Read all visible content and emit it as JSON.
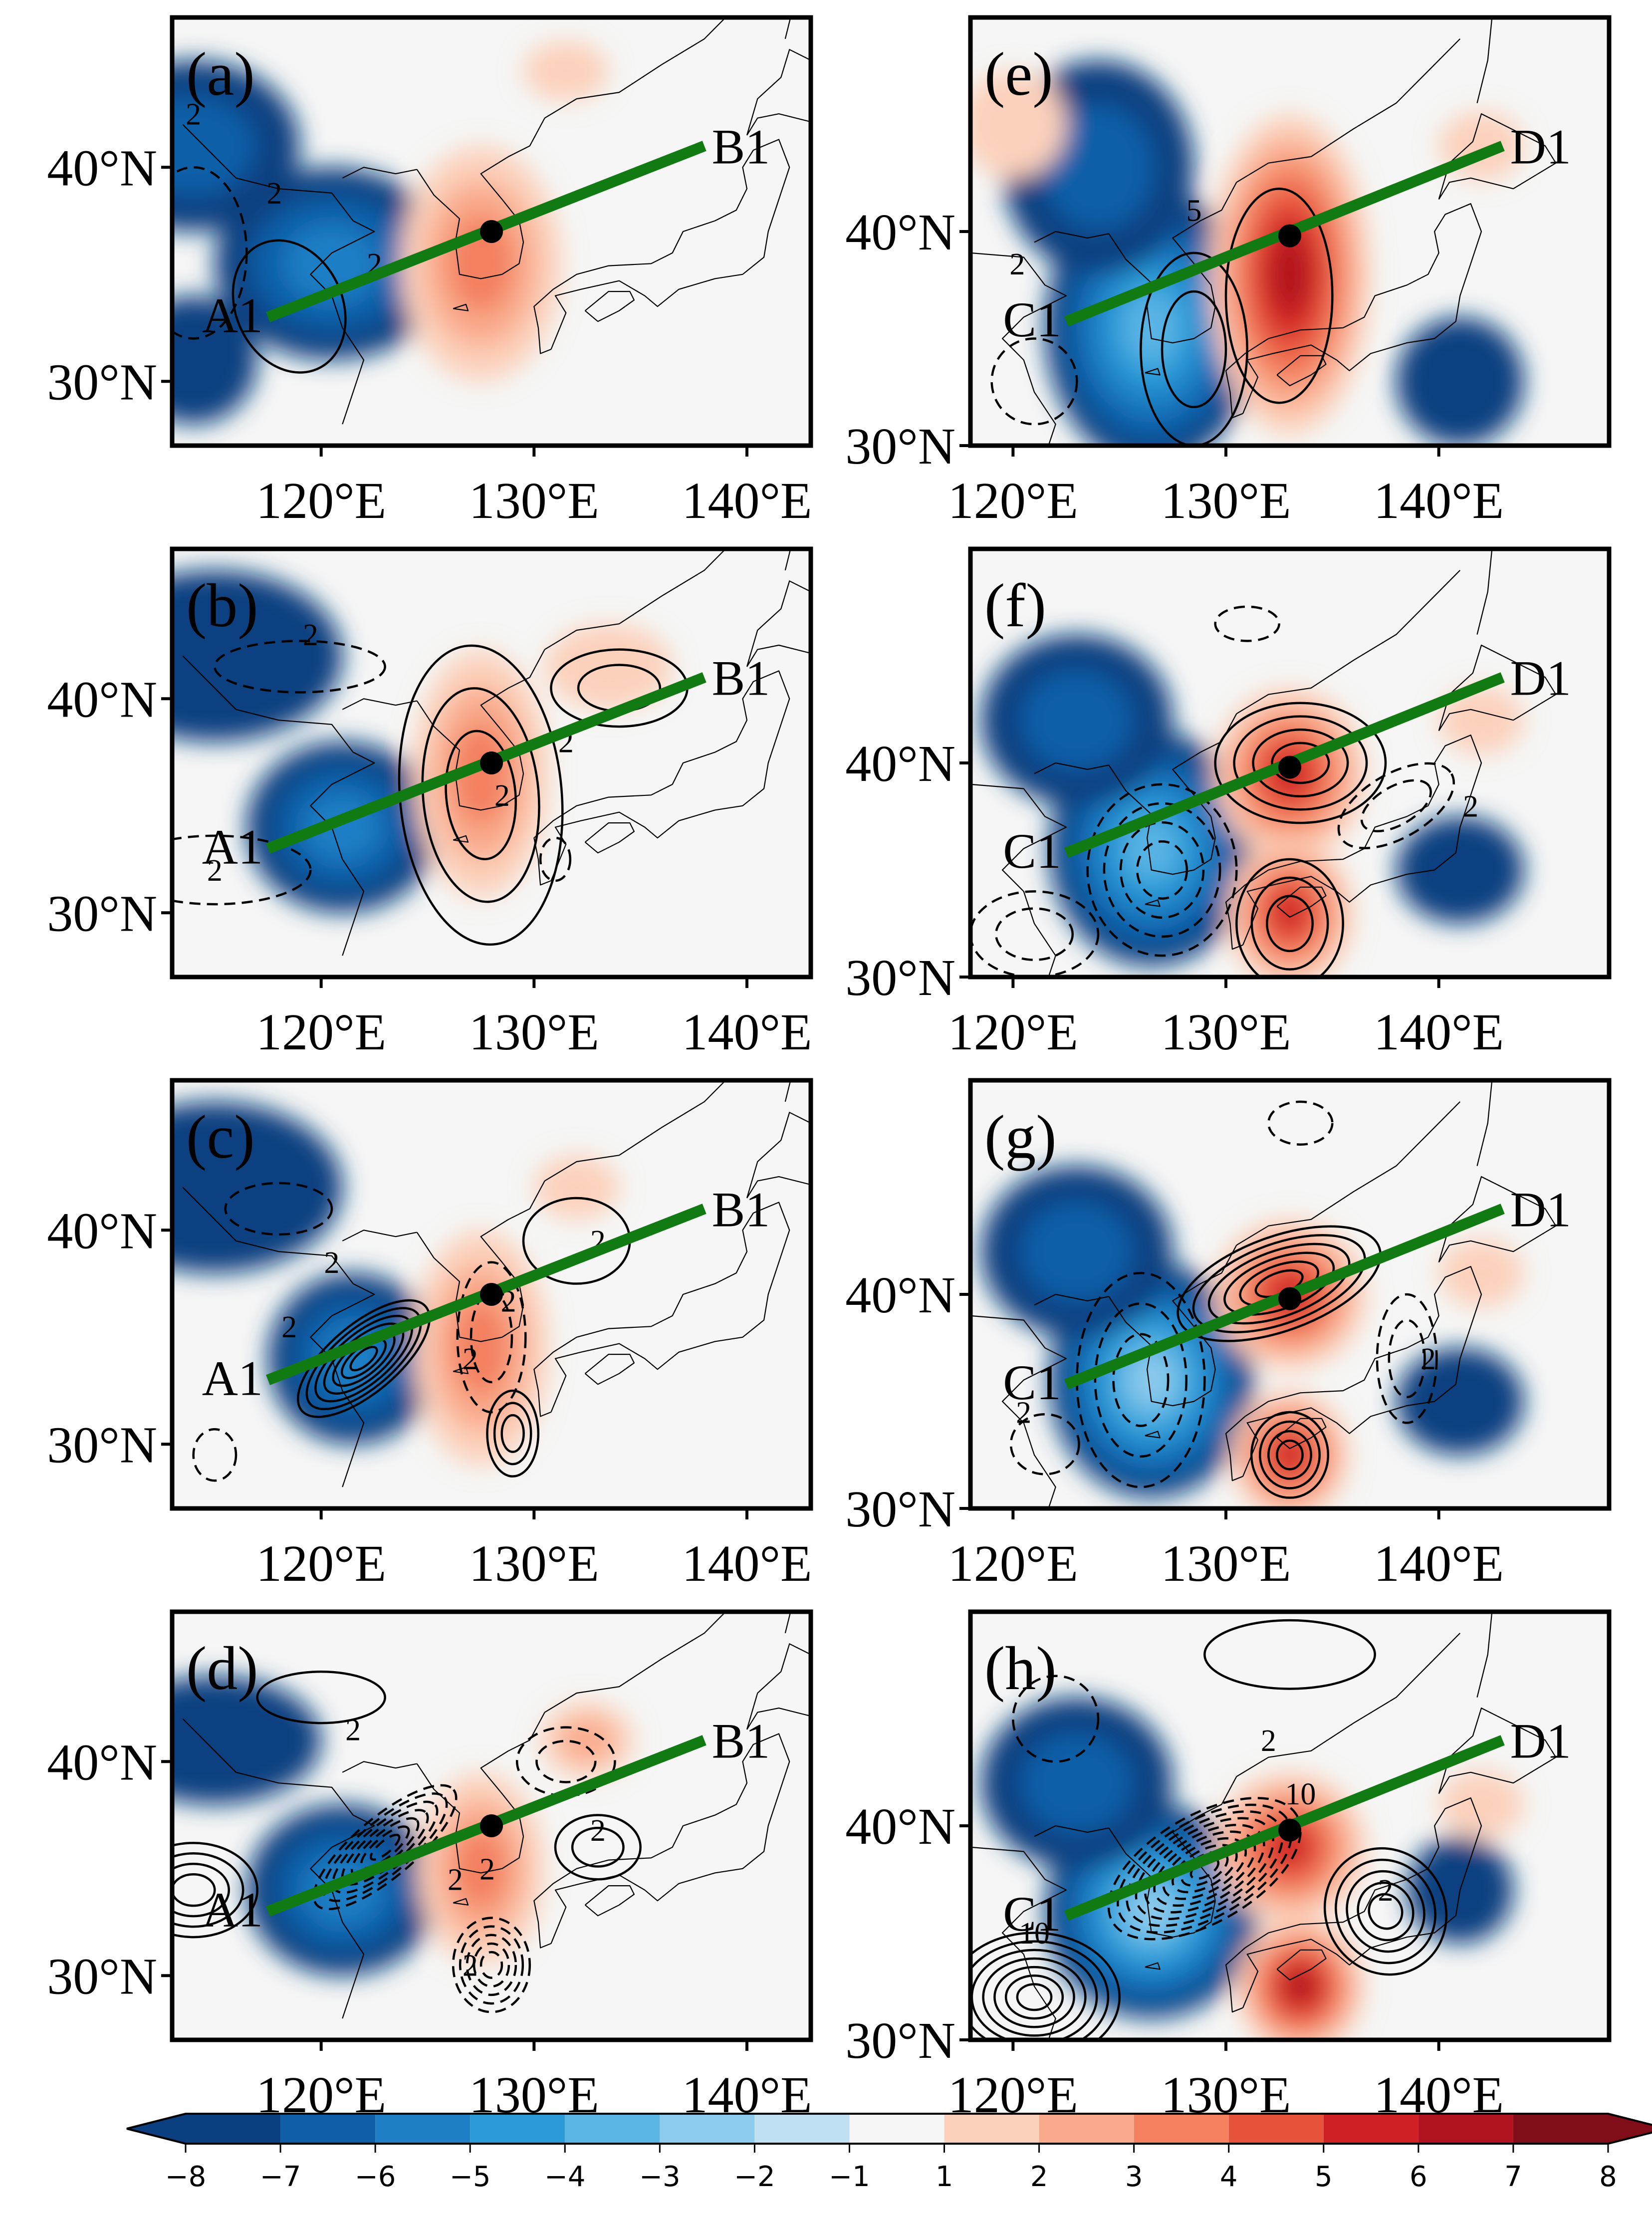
{
  "panels": [
    {
      "label": "(a)",
      "start": "A1",
      "end": "B1",
      "ylabels": [
        "40°N",
        "30°N"
      ]
    },
    {
      "label": "(b)",
      "start": "A1",
      "end": "B1",
      "ylabels": [
        "40°N",
        "30°N"
      ]
    },
    {
      "label": "(c)",
      "start": "A1",
      "end": "B1",
      "ylabels": [
        "40°N",
        "30°N"
      ]
    },
    {
      "label": "(d)",
      "start": "A1",
      "end": "B1",
      "ylabels": [
        "40°N",
        "30°N"
      ]
    },
    {
      "label": "(e)",
      "start": "C1",
      "end": "D1",
      "ylabels": [
        "40°N",
        "30°N"
      ]
    },
    {
      "label": "(f)",
      "start": "C1",
      "end": "D1",
      "ylabels": [
        "40°N",
        "30°N"
      ]
    },
    {
      "label": "(g)",
      "start": "C1",
      "end": "D1",
      "ylabels": [
        "40°N",
        "30°N"
      ]
    },
    {
      "label": "(h)",
      "start": "C1",
      "end": "D1",
      "ylabels": [
        "40°N",
        "30°N"
      ]
    }
  ],
  "xlabels": [
    "120°E",
    "130°E",
    "140°E"
  ],
  "contour_labels": {
    "a": [
      "2",
      "2",
      "2"
    ],
    "b": [
      "2",
      "2",
      "2",
      "2"
    ],
    "c": [
      "2",
      "2",
      "2",
      "2",
      "2"
    ],
    "d": [
      "2",
      "2",
      "2",
      "2",
      "2"
    ],
    "e": [
      "2",
      "5"
    ],
    "f": [
      "2"
    ],
    "g": [
      "2",
      "2"
    ],
    "h": [
      "2",
      "10",
      "10",
      "2"
    ]
  },
  "colorbar": {
    "ticks": [
      "−8",
      "−7",
      "−6",
      "−5",
      "−4",
      "−3",
      "−2",
      "−1",
      "1",
      "2",
      "3",
      "4",
      "5",
      "6",
      "7",
      "8"
    ],
    "colors": [
      "#0b3f80",
      "#0f5fa8",
      "#1f7ec4",
      "#2b9bd8",
      "#5ab4e4",
      "#8dcbec",
      "#bfe0f3",
      "#f5f6f5",
      "#fcd1bc",
      "#f9aa8c",
      "#f3805f",
      "#e7523b",
      "#cf2026",
      "#b0121f",
      "#800d18"
    ]
  }
}
